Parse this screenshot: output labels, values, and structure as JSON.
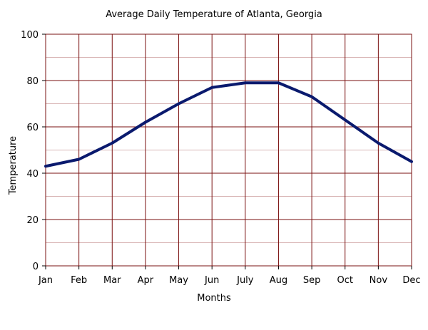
{
  "chart_data": {
    "type": "line",
    "title": "Average Daily Temperature of Atlanta, Georgia",
    "xlabel": "Months",
    "ylabel": "Temperature",
    "categories": [
      "Jan",
      "Feb",
      "Mar",
      "Apr",
      "May",
      "Jun",
      "July",
      "Aug",
      "Sep",
      "Oct",
      "Nov",
      "Dec"
    ],
    "series": [
      {
        "values": [
          43,
          46,
          53,
          62,
          70,
          77,
          79,
          79,
          73,
          63,
          53,
          45
        ]
      }
    ],
    "ylim": [
      0,
      100
    ],
    "y_ticks": [
      "0",
      "20",
      "40",
      "60",
      "80",
      "100"
    ],
    "y_minor_step": 10,
    "grid": true,
    "legend": "none",
    "colors": {
      "line": "#0a1a6e",
      "grid_major": "#7a1010",
      "grid_minor": "#d8b4b4",
      "frame": "#7a1010",
      "background": "#ffffff"
    }
  }
}
